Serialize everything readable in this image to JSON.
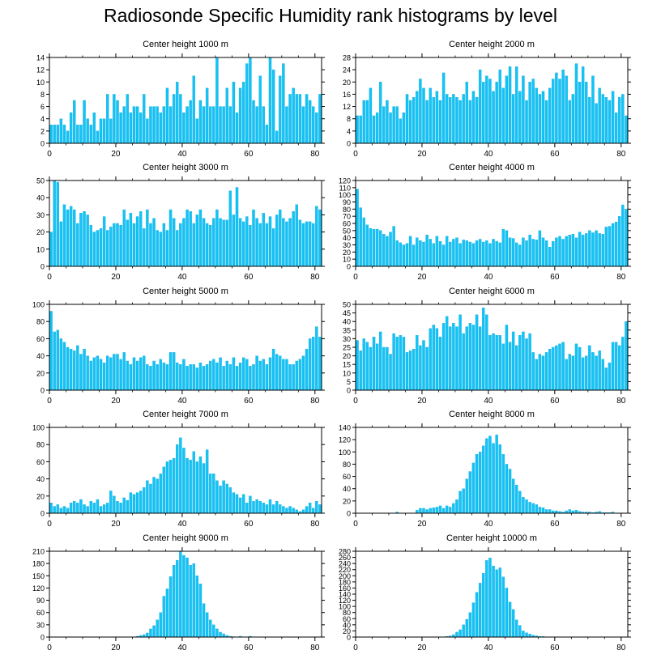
{
  "title": "Radiosonde Specific Humidity rank histograms by level",
  "colors": {
    "bar_fill": "#13c3f6",
    "bar_edge": "#0aa4d6",
    "axis": "#000000",
    "background": "#ffffff"
  },
  "chart_data": [
    {
      "type": "bar",
      "title": "Center height 1000 m",
      "xlabel": "",
      "ylabel": "",
      "xlim": [
        0,
        82
      ],
      "ylim": [
        0,
        14
      ],
      "xticks": [
        0,
        20,
        40,
        60,
        80
      ],
      "yticks": [
        0,
        2,
        4,
        6,
        8,
        10,
        12,
        14
      ],
      "values": [
        3,
        3,
        3,
        4,
        3,
        2,
        5,
        7,
        3,
        3,
        7,
        4,
        3,
        5,
        2,
        4,
        4,
        8,
        4,
        8,
        7,
        5,
        6,
        8,
        5,
        6,
        6,
        5,
        8,
        4,
        6,
        6,
        6,
        5,
        6,
        9,
        6,
        8,
        10,
        8,
        5,
        6,
        7,
        11,
        4,
        7,
        6,
        9,
        6,
        6,
        14,
        6,
        6,
        9,
        6,
        10,
        5,
        9,
        10,
        13,
        14,
        7,
        6,
        11,
        6,
        3,
        14,
        12,
        2,
        11,
        13,
        6,
        8,
        9,
        8,
        8,
        6,
        8,
        7,
        6,
        5,
        8
      ]
    },
    {
      "type": "bar",
      "title": "Center height 2000 m",
      "xlabel": "",
      "ylabel": "",
      "xlim": [
        0,
        82
      ],
      "ylim": [
        0,
        28
      ],
      "xticks": [
        0,
        20,
        40,
        60,
        80
      ],
      "yticks": [
        0,
        4,
        8,
        12,
        16,
        20,
        24,
        28
      ],
      "values": [
        9,
        9,
        14,
        14,
        18,
        9,
        10,
        20,
        12,
        14,
        10,
        12,
        12,
        8,
        10,
        16,
        14,
        15,
        17,
        21,
        18,
        14,
        18,
        15,
        17,
        14,
        23,
        16,
        15,
        16,
        15,
        14,
        16,
        20,
        14,
        17,
        15,
        24,
        20,
        22,
        21,
        17,
        20,
        24,
        18,
        22,
        25,
        16,
        25,
        17,
        22,
        14,
        20,
        21,
        18,
        16,
        17,
        14,
        18,
        21,
        23,
        21,
        24,
        22,
        14,
        16,
        26,
        20,
        25,
        20,
        15,
        22,
        13,
        18,
        16,
        15,
        14,
        17,
        10,
        15,
        16,
        9
      ]
    },
    {
      "type": "bar",
      "title": "Center height 3000 m",
      "xlabel": "",
      "ylabel": "",
      "xlim": [
        0,
        82
      ],
      "ylim": [
        0,
        50
      ],
      "xticks": [
        0,
        20,
        40,
        60,
        80
      ],
      "yticks": [
        0,
        10,
        20,
        30,
        40,
        50
      ],
      "values": [
        20,
        50,
        49,
        26,
        36,
        33,
        35,
        33,
        25,
        31,
        32,
        30,
        24,
        20,
        21,
        22,
        29,
        21,
        23,
        25,
        25,
        24,
        33,
        27,
        31,
        25,
        29,
        32,
        22,
        33,
        25,
        28,
        21,
        20,
        25,
        21,
        33,
        28,
        21,
        25,
        28,
        33,
        32,
        25,
        30,
        33,
        28,
        25,
        24,
        28,
        33,
        28,
        27,
        27,
        44,
        30,
        46,
        28,
        26,
        29,
        24,
        33,
        28,
        25,
        31,
        25,
        29,
        22,
        30,
        33,
        28,
        26,
        28,
        32,
        36,
        27,
        25,
        26,
        26,
        25,
        35,
        33
      ]
    },
    {
      "type": "bar",
      "title": "Center height 4000 m",
      "xlabel": "",
      "ylabel": "",
      "xlim": [
        0,
        82
      ],
      "ylim": [
        0,
        120
      ],
      "xticks": [
        0,
        20,
        40,
        60,
        80
      ],
      "yticks": [
        0,
        10,
        20,
        30,
        40,
        50,
        60,
        70,
        80,
        90,
        100,
        110,
        120
      ],
      "values": [
        108,
        82,
        68,
        58,
        53,
        52,
        52,
        50,
        45,
        42,
        48,
        56,
        36,
        33,
        30,
        32,
        42,
        30,
        40,
        36,
        34,
        44,
        38,
        32,
        42,
        35,
        30,
        42,
        34,
        38,
        40,
        32,
        37,
        36,
        34,
        32,
        36,
        38,
        34,
        36,
        32,
        38,
        35,
        33,
        52,
        50,
        40,
        39,
        33,
        30,
        40,
        36,
        44,
        38,
        37,
        50,
        40,
        36,
        27,
        35,
        40,
        42,
        38,
        42,
        44,
        45,
        40,
        48,
        44,
        46,
        50,
        47,
        50,
        46,
        45,
        55,
        56,
        60,
        62,
        70,
        86,
        80
      ]
    },
    {
      "type": "bar",
      "title": "Center height 5000 m",
      "xlabel": "",
      "ylabel": "",
      "xlim": [
        0,
        82
      ],
      "ylim": [
        0,
        100
      ],
      "xticks": [
        0,
        20,
        40,
        60,
        80
      ],
      "yticks": [
        0,
        20,
        40,
        60,
        80,
        100
      ],
      "values": [
        92,
        68,
        70,
        60,
        56,
        50,
        48,
        46,
        52,
        42,
        48,
        40,
        34,
        38,
        40,
        36,
        32,
        40,
        38,
        42,
        42,
        36,
        44,
        34,
        30,
        38,
        34,
        38,
        40,
        30,
        28,
        34,
        30,
        36,
        32,
        30,
        44,
        44,
        32,
        30,
        36,
        28,
        30,
        30,
        26,
        32,
        28,
        30,
        34,
        36,
        32,
        38,
        28,
        34,
        30,
        38,
        28,
        32,
        38,
        36,
        28,
        30,
        40,
        34,
        36,
        30,
        38,
        48,
        42,
        40,
        36,
        36,
        30,
        30,
        34,
        36,
        40,
        48,
        60,
        62,
        74,
        62
      ]
    },
    {
      "type": "bar",
      "title": "Center height 6000 m",
      "xlabel": "",
      "ylabel": "",
      "xlim": [
        0,
        82
      ],
      "ylim": [
        0,
        50
      ],
      "xticks": [
        0,
        20,
        40,
        60,
        80
      ],
      "yticks": [
        0,
        5,
        10,
        15,
        20,
        25,
        30,
        35,
        40,
        45,
        50
      ],
      "values": [
        29,
        23,
        30,
        28,
        25,
        31,
        27,
        34,
        25,
        25,
        21,
        33,
        31,
        32,
        31,
        22,
        23,
        24,
        32,
        26,
        29,
        25,
        36,
        38,
        36,
        31,
        39,
        43,
        37,
        39,
        37,
        44,
        33,
        37,
        39,
        38,
        44,
        37,
        48,
        44,
        32,
        33,
        32,
        32,
        27,
        38,
        28,
        34,
        26,
        32,
        34,
        30,
        33,
        22,
        18,
        21,
        20,
        22,
        24,
        25,
        26,
        27,
        28,
        18,
        21,
        20,
        27,
        25,
        19,
        20,
        26,
        22,
        20,
        23,
        18,
        13,
        16,
        28,
        28,
        26,
        31,
        40
      ]
    },
    {
      "type": "bar",
      "title": "Center height 7000 m",
      "xlabel": "",
      "ylabel": "",
      "xlim": [
        0,
        82
      ],
      "ylim": [
        0,
        100
      ],
      "xticks": [
        0,
        20,
        40,
        60,
        80
      ],
      "yticks": [
        0,
        20,
        40,
        60,
        80,
        100
      ],
      "values": [
        12,
        8,
        10,
        6,
        8,
        6,
        12,
        14,
        12,
        16,
        10,
        8,
        14,
        12,
        16,
        8,
        10,
        12,
        26,
        20,
        14,
        12,
        18,
        15,
        24,
        22,
        24,
        26,
        30,
        38,
        34,
        42,
        40,
        46,
        54,
        60,
        62,
        64,
        80,
        88,
        76,
        64,
        62,
        72,
        60,
        66,
        58,
        74,
        46,
        46,
        38,
        32,
        38,
        34,
        30,
        24,
        22,
        18,
        22,
        12,
        20,
        14,
        16,
        14,
        12,
        10,
        16,
        10,
        14,
        10,
        8,
        6,
        8,
        6,
        4,
        2,
        4,
        8,
        12,
        6,
        14,
        10
      ]
    },
    {
      "type": "bar",
      "title": "Center height 8000 m",
      "xlabel": "",
      "ylabel": "",
      "xlim": [
        0,
        82
      ],
      "ylim": [
        0,
        140
      ],
      "xticks": [
        0,
        20,
        40,
        60,
        80
      ],
      "yticks": [
        0,
        20,
        40,
        60,
        80,
        100,
        120,
        140
      ],
      "values": [
        0,
        0,
        0,
        0,
        0,
        0,
        0,
        0,
        0,
        0,
        0,
        0,
        2,
        0,
        0,
        0,
        0,
        0,
        5,
        8,
        8,
        6,
        8,
        9,
        10,
        12,
        8,
        12,
        10,
        16,
        22,
        36,
        40,
        56,
        68,
        82,
        96,
        100,
        110,
        122,
        126,
        114,
        128,
        112,
        96,
        80,
        72,
        56,
        46,
        36,
        26,
        22,
        18,
        16,
        14,
        10,
        9,
        6,
        6,
        4,
        4,
        3,
        2,
        4,
        6,
        4,
        5,
        3,
        2,
        2,
        2,
        1,
        2,
        3,
        1,
        1,
        1,
        2,
        0,
        0,
        0,
        0
      ]
    },
    {
      "type": "bar",
      "title": "Center height 9000 m",
      "xlabel": "",
      "ylabel": "",
      "xlim": [
        0,
        82
      ],
      "ylim": [
        0,
        210
      ],
      "xticks": [
        0,
        20,
        40,
        60,
        80
      ],
      "yticks": [
        0,
        30,
        60,
        90,
        120,
        150,
        180,
        210
      ],
      "values": [
        0,
        0,
        0,
        0,
        0,
        0,
        0,
        0,
        0,
        0,
        0,
        0,
        0,
        0,
        0,
        0,
        0,
        0,
        0,
        0,
        0,
        0,
        0,
        0,
        0,
        0,
        2,
        4,
        6,
        10,
        20,
        28,
        42,
        60,
        100,
        118,
        148,
        176,
        188,
        212,
        200,
        194,
        176,
        180,
        150,
        130,
        82,
        60,
        42,
        30,
        20,
        12,
        8,
        4,
        2,
        1,
        0,
        2,
        0,
        0,
        2,
        0,
        0,
        0,
        0,
        0,
        0,
        0,
        0,
        0,
        0,
        0,
        0,
        0,
        0,
        0,
        0,
        0,
        0,
        0,
        0,
        0
      ]
    },
    {
      "type": "bar",
      "title": "Center height 10000 m",
      "xlabel": "",
      "ylabel": "",
      "xlim": [
        0,
        82
      ],
      "ylim": [
        0,
        280
      ],
      "xticks": [
        0,
        20,
        40,
        60,
        80
      ],
      "yticks": [
        0,
        20,
        40,
        60,
        80,
        100,
        120,
        140,
        160,
        180,
        200,
        220,
        240,
        260,
        280
      ],
      "values": [
        0,
        0,
        0,
        0,
        0,
        0,
        0,
        0,
        0,
        0,
        0,
        0,
        0,
        0,
        0,
        0,
        0,
        0,
        0,
        0,
        0,
        0,
        0,
        0,
        0,
        0,
        0,
        2,
        4,
        8,
        16,
        24,
        40,
        58,
        80,
        112,
        146,
        176,
        208,
        250,
        258,
        232,
        220,
        226,
        196,
        160,
        114,
        90,
        56,
        38,
        20,
        14,
        10,
        6,
        4,
        2,
        2,
        0,
        0,
        0,
        0,
        0,
        0,
        0,
        0,
        0,
        0,
        0,
        0,
        0,
        0,
        0,
        0,
        0,
        0,
        0,
        0,
        0,
        0,
        0,
        0,
        0
      ]
    }
  ]
}
